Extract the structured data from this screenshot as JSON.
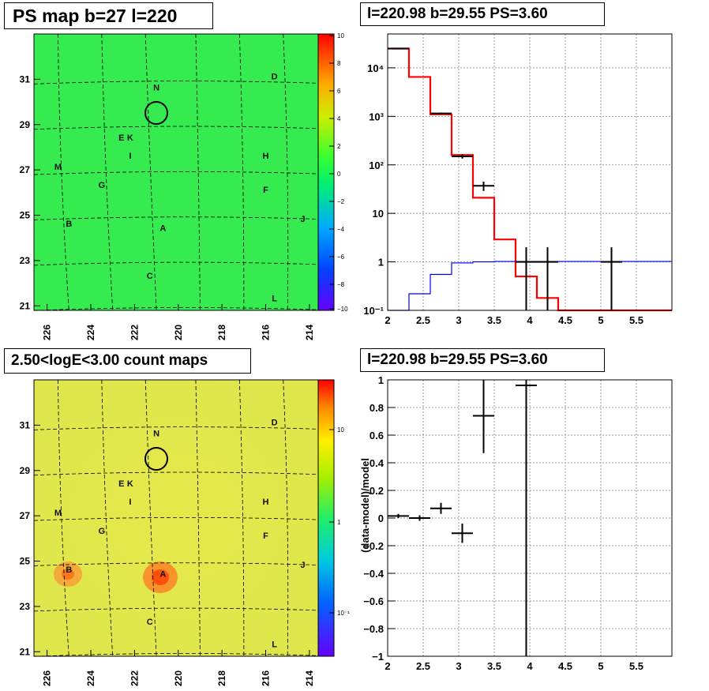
{
  "panels": {
    "ps_map": {
      "title": "PS map b=27 l=220",
      "lon_ticks": [
        "226",
        "224",
        "222",
        "220",
        "218",
        "216",
        "214"
      ],
      "lat_ticks": [
        "31",
        "29",
        "27",
        "25",
        "23",
        "21"
      ],
      "colorbar_ticks": [
        "10",
        "8",
        "6",
        "4",
        "2",
        "0",
        "−2",
        "−4",
        "−6",
        "−8",
        "−10"
      ]
    },
    "count_map": {
      "title": "2.50<logE<3.00 count maps",
      "lon_ticks": [
        "226",
        "224",
        "222",
        "220",
        "218",
        "216",
        "214"
      ],
      "lat_ticks": [
        "31",
        "29",
        "27",
        "25",
        "23",
        "21"
      ],
      "colorbar_ticks": [
        "10",
        "1",
        "10⁻¹"
      ]
    },
    "spectrum": {
      "title": "l=220.98 b=29.55 PS=3.60"
    },
    "residual": {
      "title": "l=220.98 b=29.55 PS=3.60"
    }
  },
  "source_labels": [
    {
      "name": "N",
      "lon": 221.0,
      "lat": 30.5
    },
    {
      "name": "D",
      "lon": 215.6,
      "lat": 31.0
    },
    {
      "name": "E",
      "lon": 222.6,
      "lat": 28.3
    },
    {
      "name": "K",
      "lon": 222.2,
      "lat": 28.3
    },
    {
      "name": "I",
      "lon": 222.2,
      "lat": 27.5
    },
    {
      "name": "H",
      "lon": 216.0,
      "lat": 27.5
    },
    {
      "name": "M",
      "lon": 225.5,
      "lat": 27.0
    },
    {
      "name": "G",
      "lon": 223.5,
      "lat": 26.2
    },
    {
      "name": "F",
      "lon": 216.0,
      "lat": 26.0
    },
    {
      "name": "B",
      "lon": 225.0,
      "lat": 24.5
    },
    {
      "name": "A",
      "lon": 220.7,
      "lat": 24.3
    },
    {
      "name": "J",
      "lon": 214.3,
      "lat": 24.7
    },
    {
      "name": "C",
      "lon": 221.3,
      "lat": 22.2
    },
    {
      "name": "L",
      "lon": 215.6,
      "lat": 21.2
    }
  ],
  "chart_data": [
    {
      "type": "heatmap",
      "title": "PS map b=27 l=220",
      "xlabel": "",
      "ylabel": "",
      "xlim": [
        226.6,
        213.6
      ],
      "ylim": [
        20.8,
        33.0
      ],
      "zlim": [
        -10,
        10
      ],
      "zscale": "linear",
      "marker_circle": {
        "lon": 220.98,
        "lat": 29.55
      }
    },
    {
      "type": "heatmap",
      "title": "2.50<logE<3.00 count maps",
      "xlabel": "",
      "ylabel": "",
      "xlim": [
        226.6,
        213.6
      ],
      "ylim": [
        20.8,
        33.0
      ],
      "zscale": "log",
      "marker_circle": {
        "lon": 220.98,
        "lat": 29.55
      },
      "hotspots": [
        {
          "name": "A",
          "lon": 220.8,
          "lat": 24.3
        },
        {
          "name": "B",
          "lon": 225.0,
          "lat": 24.5
        }
      ]
    },
    {
      "type": "line",
      "title": "l=220.98 b=29.55 PS=3.60",
      "xlabel": "",
      "ylabel": "",
      "xlim": [
        2,
        6
      ],
      "ylim": [
        0.1,
        50000
      ],
      "yscale": "log",
      "grid": true,
      "x_ticks": [
        "2",
        "2.5",
        "3",
        "3.5",
        "4",
        "4.5",
        "5",
        "5.5"
      ],
      "y_ticks": [
        "10⁻¹",
        "1",
        "10",
        "10²",
        "10³",
        "10⁴"
      ],
      "series": [
        {
          "style": "step",
          "color": "#ff0000",
          "edges": [
            2.0,
            2.3,
            2.6,
            2.9,
            3.2,
            3.5,
            3.8,
            4.1,
            4.4,
            6.0
          ],
          "values": [
            25000,
            6500,
            1100,
            160,
            21,
            2.9,
            0.5,
            0.18,
            0.1
          ]
        },
        {
          "style": "step",
          "color": "#0000ff",
          "edges": [
            2.0,
            2.3,
            2.6,
            2.9,
            3.2,
            3.5,
            6.0
          ],
          "values": [
            0.1,
            0.22,
            0.55,
            0.95,
            1.0,
            1.02
          ]
        },
        {
          "style": "errorbar",
          "color": "#000000",
          "points": [
            {
              "x": 2.15,
              "xerr": 0.15,
              "y": 25000,
              "ylo": 24500,
              "yhi": 25500
            },
            {
              "x": 2.75,
              "xerr": 0.15,
              "y": 1150,
              "ylo": 1100,
              "yhi": 1200
            },
            {
              "x": 3.05,
              "xerr": 0.15,
              "y": 150,
              "ylo": 135,
              "yhi": 165
            },
            {
              "x": 3.35,
              "xerr": 0.15,
              "y": 37,
              "ylo": 29,
              "yhi": 45
            },
            {
              "x": 3.95,
              "xerr": 0.15,
              "y": 1.0,
              "ylo": 0.1,
              "yhi": 2.0
            },
            {
              "x": 4.25,
              "xerr": 0.15,
              "y": 1.0,
              "ylo": 0.1,
              "yhi": 2.0
            },
            {
              "x": 5.15,
              "xerr": 0.15,
              "y": 1.0,
              "ylo": 0.1,
              "yhi": 2.0
            }
          ]
        }
      ]
    },
    {
      "type": "scatter",
      "title": "l=220.98 b=29.55 PS=3.60",
      "xlabel": "",
      "ylabel": "(data-model)/model",
      "xlim": [
        2,
        6
      ],
      "ylim": [
        -1,
        1
      ],
      "grid": true,
      "x_ticks": [
        "2",
        "2.5",
        "3",
        "3.5",
        "4",
        "4.5",
        "5",
        "5.5"
      ],
      "y_ticks": [
        "1",
        "0.8",
        "0.6",
        "0.4",
        "0.2",
        "0",
        "−0.2",
        "−0.4",
        "−0.6",
        "−0.8",
        "−1"
      ],
      "series": [
        {
          "style": "errorbar",
          "color": "#000000",
          "points": [
            {
              "x": 2.15,
              "xerr": 0.15,
              "y": 0.015,
              "ylo": 0.0,
              "yhi": 0.03
            },
            {
              "x": 2.45,
              "xerr": 0.15,
              "y": 0.0,
              "ylo": -0.02,
              "yhi": 0.02
            },
            {
              "x": 2.75,
              "xerr": 0.15,
              "y": 0.07,
              "ylo": 0.03,
              "yhi": 0.11
            },
            {
              "x": 3.05,
              "xerr": 0.15,
              "y": -0.11,
              "ylo": -0.18,
              "yhi": -0.04
            },
            {
              "x": 3.35,
              "xerr": 0.15,
              "y": 0.74,
              "ylo": 0.47,
              "yhi": 1.0
            },
            {
              "x": 3.95,
              "xerr": 0.15,
              "y": 0.96,
              "ylo": -1.0,
              "yhi": 1.0
            }
          ]
        }
      ]
    }
  ]
}
